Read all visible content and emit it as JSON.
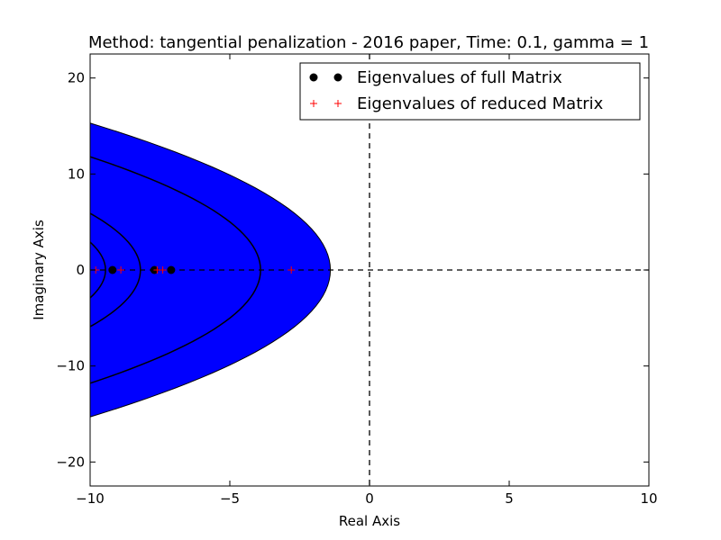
{
  "chart_data": {
    "type": "scatter",
    "title": "Method: tangential penalization - 2016 paper, Time: 0.1, gamma = 1",
    "xlabel": "Real Axis",
    "ylabel": "Imaginary Axis",
    "xlim": [
      -10,
      10
    ],
    "ylim": [
      -22.5,
      22.5
    ],
    "x_ticks": [
      -10,
      -5,
      0,
      5,
      10
    ],
    "x_tick_labels": [
      "−10",
      "−5",
      "0",
      "5",
      "10"
    ],
    "y_ticks": [
      -20,
      -10,
      0,
      10,
      20
    ],
    "y_tick_labels": [
      "−20",
      "−10",
      "0",
      "10",
      "20"
    ],
    "grid": false,
    "legend_position": "top-right",
    "reference_lines": {
      "x": 0,
      "y": 0,
      "style": "dashed",
      "color": "#000000"
    },
    "stability_region": {
      "fill_color": "#0000ff",
      "vertex_x": -1.4,
      "half_height_at_left_edge": 15.3
    },
    "contours": [
      {
        "vertex_x": -3.9,
        "half_height_at_left_edge": 11.8
      },
      {
        "vertex_x": -8.2,
        "half_height_at_left_edge": 5.9
      },
      {
        "vertex_x": -9.45,
        "half_height_at_left_edge": 2.9
      }
    ],
    "series": [
      {
        "name": "Eigenvalues of full Matrix",
        "marker": "circle",
        "color": "#000000",
        "points": [
          [
            -9.2,
            0
          ],
          [
            -7.7,
            0
          ],
          [
            -7.1,
            0
          ]
        ]
      },
      {
        "name": "Eigenvalues of reduced Matrix",
        "marker": "plus",
        "color": "#ff0000",
        "points": [
          [
            -9.8,
            0
          ],
          [
            -8.9,
            0
          ],
          [
            -7.6,
            0
          ],
          [
            -7.4,
            0
          ],
          [
            -2.8,
            0
          ]
        ]
      }
    ]
  }
}
